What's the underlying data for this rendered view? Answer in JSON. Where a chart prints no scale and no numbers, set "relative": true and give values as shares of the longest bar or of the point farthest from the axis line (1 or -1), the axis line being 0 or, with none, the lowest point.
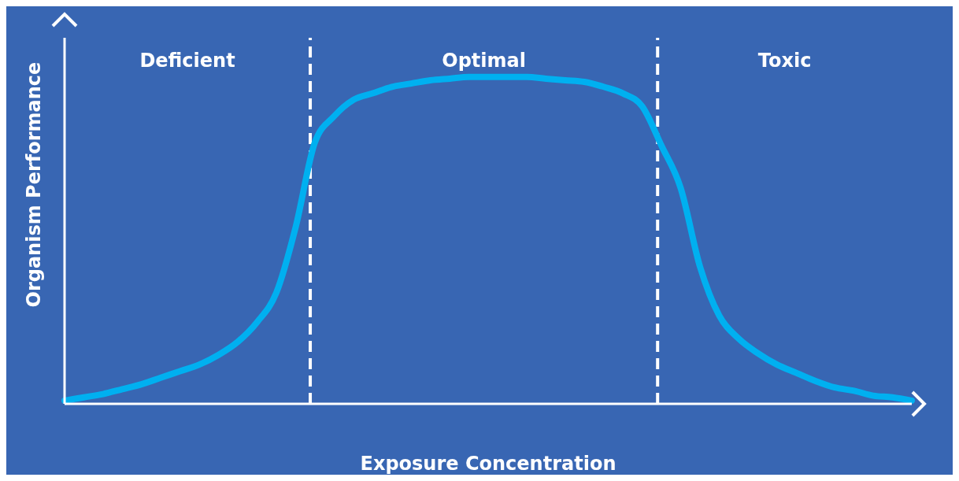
{
  "chart_data": {
    "type": "line",
    "relative": true,
    "xlabel": "Exposure Concentration",
    "ylabel": "Organism Performance",
    "categories": [
      null,
      null,
      null,
      null,
      null,
      null,
      null,
      null,
      null,
      null,
      null,
      null,
      null,
      null,
      null,
      null,
      null,
      null,
      null,
      null,
      null,
      null,
      null,
      null,
      null,
      null,
      null,
      null,
      null,
      null,
      null,
      null,
      null,
      null,
      null,
      null,
      null,
      null,
      null,
      null,
      null,
      null,
      null,
      null,
      null
    ],
    "series": [
      {
        "color": "#00b0f0",
        "values": [
          0.01,
          0.02,
          0.03,
          0.045,
          0.06,
          0.08,
          0.1,
          0.12,
          0.15,
          0.19,
          0.25,
          0.34,
          0.54,
          0.8,
          0.88,
          0.93,
          0.95,
          0.97,
          0.98,
          0.99,
          0.995,
          1,
          1,
          1,
          1,
          0.995,
          0.99,
          0.985,
          0.97,
          0.95,
          0.91,
          0.79,
          0.66,
          0.42,
          0.27,
          0.2,
          0.155,
          0.12,
          0.095,
          0.07,
          0.05,
          0.04,
          0.025,
          0.02,
          0.01
        ]
      }
    ],
    "annotations": [
      "Deficient",
      "Optimal",
      "Toxic"
    ],
    "grid": false,
    "legend": false,
    "marker": "none",
    "line_style": "solid"
  }
}
